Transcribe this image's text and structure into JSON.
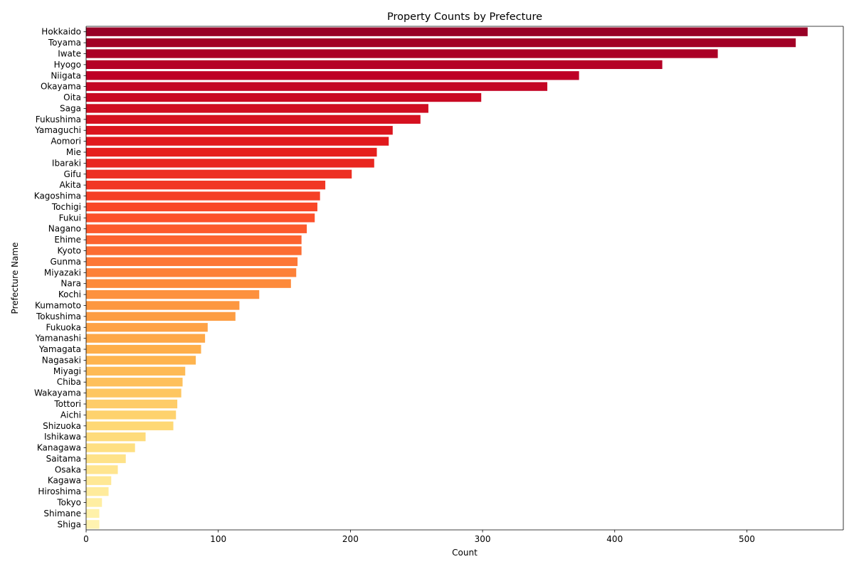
{
  "chart_data": {
    "type": "bar",
    "orientation": "horizontal",
    "title": "Property Counts by Prefecture",
    "xlabel": "Count",
    "ylabel": "Prefecture Name",
    "xlim": [
      0,
      573
    ],
    "xticks": [
      0,
      100,
      200,
      300,
      400,
      500
    ],
    "grid": false,
    "colormap": "YlOrRd",
    "categories": [
      "Hokkaido",
      "Toyama",
      "Iwate",
      "Hyogo",
      "Niigata",
      "Okayama",
      "Oita",
      "Saga",
      "Fukushima",
      "Yamaguchi",
      "Aomori",
      "Mie",
      "Ibaraki",
      "Gifu",
      "Akita",
      "Kagoshima",
      "Tochigi",
      "Fukui",
      "Nagano",
      "Ehime",
      "Kyoto",
      "Gunma",
      "Miyazaki",
      "Nara",
      "Kochi",
      "Kumamoto",
      "Tokushima",
      "Fukuoka",
      "Yamanashi",
      "Yamagata",
      "Nagasaki",
      "Miyagi",
      "Chiba",
      "Wakayama",
      "Tottori",
      "Aichi",
      "Shizuoka",
      "Ishikawa",
      "Kanagawa",
      "Saitama",
      "Osaka",
      "Kagawa",
      "Hiroshima",
      "Tokyo",
      "Shimane",
      "Shiga"
    ],
    "values": [
      546,
      537,
      478,
      436,
      373,
      349,
      299,
      259,
      253,
      232,
      229,
      220,
      218,
      201,
      181,
      177,
      175,
      173,
      167,
      163,
      163,
      160,
      159,
      155,
      131,
      116,
      113,
      92,
      90,
      87,
      83,
      75,
      73,
      72,
      69,
      68,
      66,
      45,
      37,
      30,
      24,
      19,
      17,
      12,
      10,
      10
    ]
  }
}
